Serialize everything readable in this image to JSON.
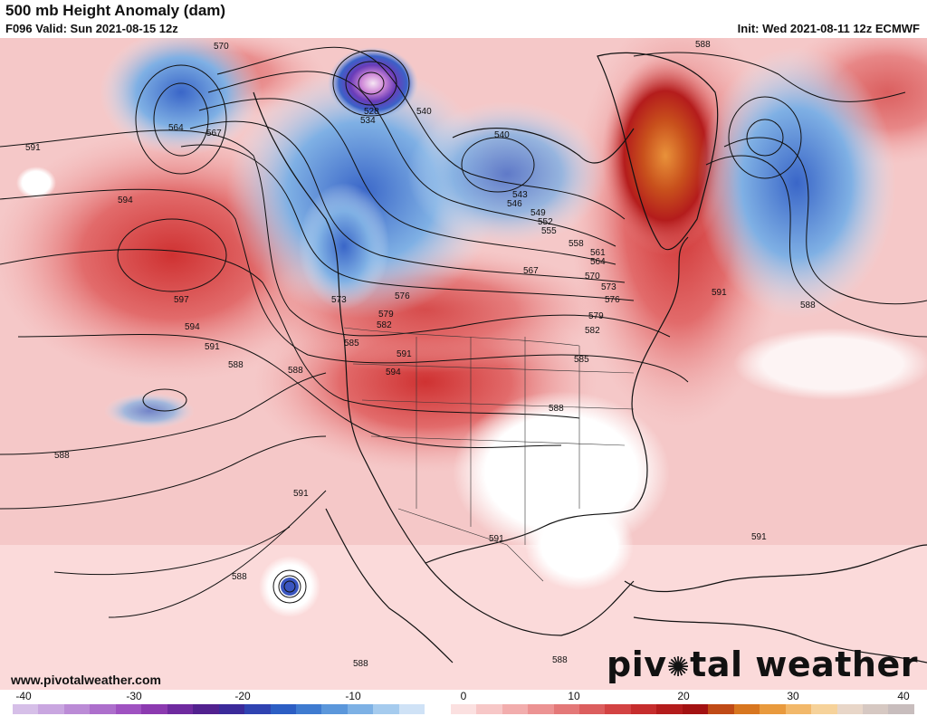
{
  "header": {
    "title": "500 mb Height Anomaly (dam)",
    "valid": "F096 Valid: Sun 2021-08-15 12z",
    "init": "Init: Wed 2021-08-11 12z ECMWF"
  },
  "footer": {
    "url": "www.pivotalweather.com",
    "brand_left": "piv",
    "brand_right": "tal weather"
  },
  "colorbar": {
    "ticks": [
      "-40",
      "-30",
      "-20",
      "-10",
      "0",
      "10",
      "20",
      "30",
      "40"
    ],
    "colors": [
      "#d6bfe8",
      "#c9a6e0",
      "#bb8bd6",
      "#ad6fcc",
      "#9f52c1",
      "#8c3ab0",
      "#6f2a9f",
      "#52218f",
      "#3b2a9a",
      "#2f43b1",
      "#2c5ec4",
      "#3f7bd0",
      "#5b97db",
      "#7db1e5",
      "#a5cbee",
      "#cfe2f6",
      "#ffffff",
      "#fbe0e0",
      "#f7c7c7",
      "#f2adad",
      "#ec9393",
      "#e47878",
      "#dc5e5e",
      "#d34343",
      "#c62d2d",
      "#b41c1c",
      "#a31212",
      "#c04a16",
      "#d8761f",
      "#e99a3d",
      "#f2b86a",
      "#f6d29a",
      "#e8d6c8",
      "#d6c8c2",
      "#c8bdbd"
    ]
  },
  "contour_labels": [
    "570",
    "564",
    "567",
    "591",
    "594",
    "597",
    "594",
    "591",
    "588",
    "588",
    "588",
    "591",
    "588",
    "588",
    "528",
    "534",
    "540",
    "540",
    "543",
    "546",
    "549",
    "552",
    "555",
    "558",
    "561",
    "564",
    "567",
    "570",
    "573",
    "576",
    "579",
    "582",
    "585",
    "588",
    "591",
    "594",
    "591",
    "573",
    "576",
    "579",
    "582",
    "585",
    "588",
    "591",
    "591",
    "588",
    "588"
  ]
}
